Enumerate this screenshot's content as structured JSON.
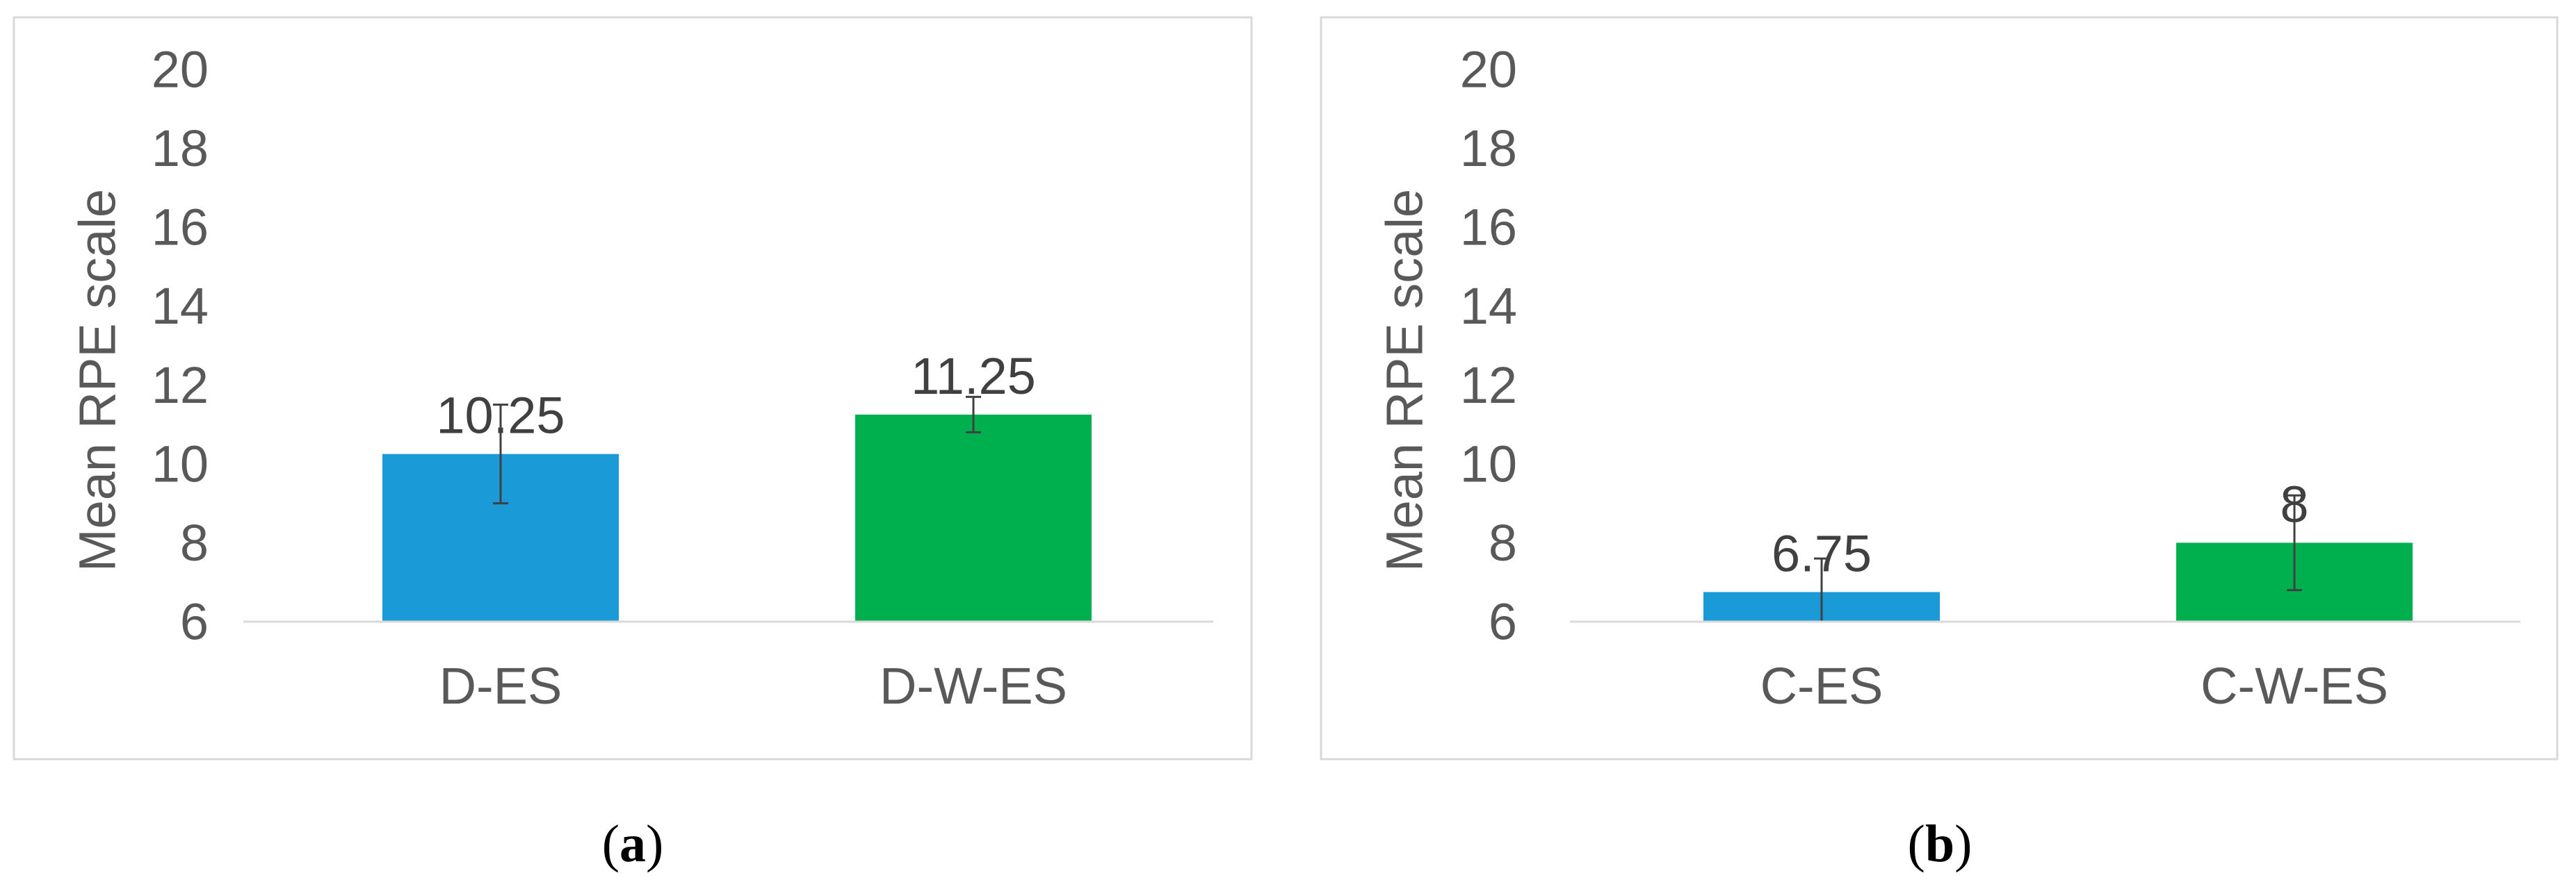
{
  "chart_data": [
    {
      "type": "bar",
      "panel_label": "(a)",
      "ylabel": "Mean RPE scale",
      "ylim": [
        6,
        20
      ],
      "yticks": [
        6,
        8,
        10,
        12,
        14,
        16,
        18,
        20
      ],
      "grid": false,
      "categories": [
        "D-ES",
        "D-W-ES"
      ],
      "values": [
        10.25,
        11.25
      ],
      "data_labels": [
        "10.25",
        "11.25"
      ],
      "error": [
        1.25,
        0.45
      ],
      "colors": [
        "#1a9bd7",
        "#00b04f"
      ]
    },
    {
      "type": "bar",
      "panel_label": "(b)",
      "ylabel": "Mean RPE scale",
      "ylim": [
        6,
        20
      ],
      "yticks": [
        6,
        8,
        10,
        12,
        14,
        16,
        18,
        20
      ],
      "grid": false,
      "categories": [
        "C-ES",
        "C-W-ES"
      ],
      "values": [
        6.75,
        8
      ],
      "data_labels": [
        "6.75",
        "8"
      ],
      "error": [
        0.85,
        1.2
      ],
      "colors": [
        "#1a9bd7",
        "#00b04f"
      ]
    }
  ]
}
